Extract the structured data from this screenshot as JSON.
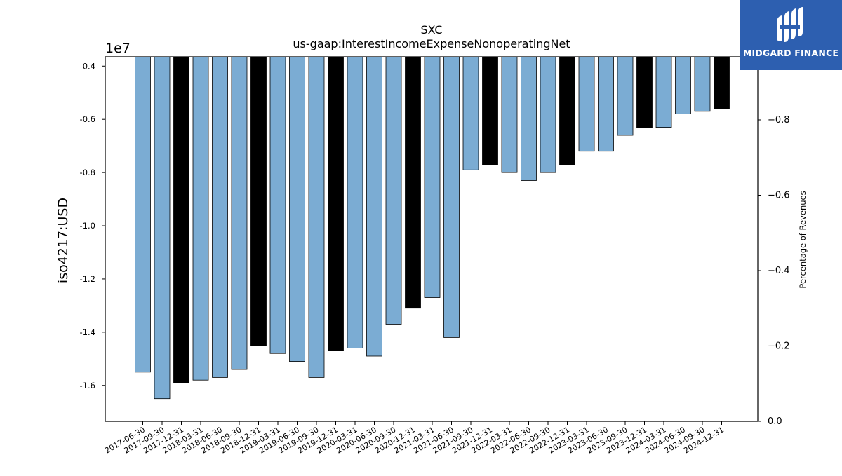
{
  "chart_data": {
    "type": "bar",
    "title": "SXC",
    "subtitle": "us-gaap:InterestIncomeExpenseNonoperatingNet",
    "ylabel": "iso4217:USD",
    "y2label": "Percentage of Revenues",
    "y_offset_label": "1e7",
    "ylim": [
      -17350000.0,
      -3650000.0
    ],
    "yticks": [
      "-0.4",
      "-0.6",
      "-0.8",
      "-1.0",
      "-1.2",
      "-1.4",
      "-1.6"
    ],
    "y2ticks": [
      "0.0",
      "−0.2",
      "−0.4",
      "−0.6",
      "−0.8"
    ],
    "grid": false,
    "categories": [
      "2017-06-30",
      "2017-09-30",
      "2017-12-31",
      "2018-03-31",
      "2018-06-30",
      "2018-09-30",
      "2018-12-31",
      "2019-03-31",
      "2019-06-30",
      "2019-09-30",
      "2019-12-31",
      "2020-03-31",
      "2020-06-30",
      "2020-09-30",
      "2020-12-31",
      "2021-03-31",
      "2021-06-30",
      "2021-09-30",
      "2021-12-31",
      "2022-03-31",
      "2022-06-30",
      "2022-09-30",
      "2022-12-31",
      "2023-03-31",
      "2023-06-30",
      "2023-09-30",
      "2023-12-31",
      "2024-03-31",
      "2024-06-30",
      "2024-09-30",
      "2024-12-31"
    ],
    "values": [
      -15500000,
      -16500000,
      -15900000,
      -15800000,
      -15700000,
      -15400000,
      -14500000,
      -14800000,
      -15100000,
      -15700000,
      -14700000,
      -14600000,
      -14900000,
      -13700000,
      -13100000,
      -12700000,
      -14200000,
      -7900000,
      -7700000,
      -8000000,
      -8300000,
      -8000000,
      -7700000,
      -7200000,
      -7200000,
      -6600000,
      -6300000,
      -6300000,
      -5800000,
      -5700000,
      -5600000
    ],
    "highlight": [
      false,
      false,
      true,
      false,
      false,
      false,
      true,
      false,
      false,
      false,
      true,
      false,
      false,
      false,
      true,
      false,
      false,
      false,
      true,
      false,
      false,
      false,
      true,
      false,
      false,
      false,
      true,
      false,
      false,
      false,
      true
    ],
    "colors": {
      "normal": "#7bacd3",
      "highlight": "#000000",
      "edge": "#000000"
    }
  },
  "brand": {
    "name": "MIDGARD FINANCE",
    "color": "#2d5fb0"
  }
}
